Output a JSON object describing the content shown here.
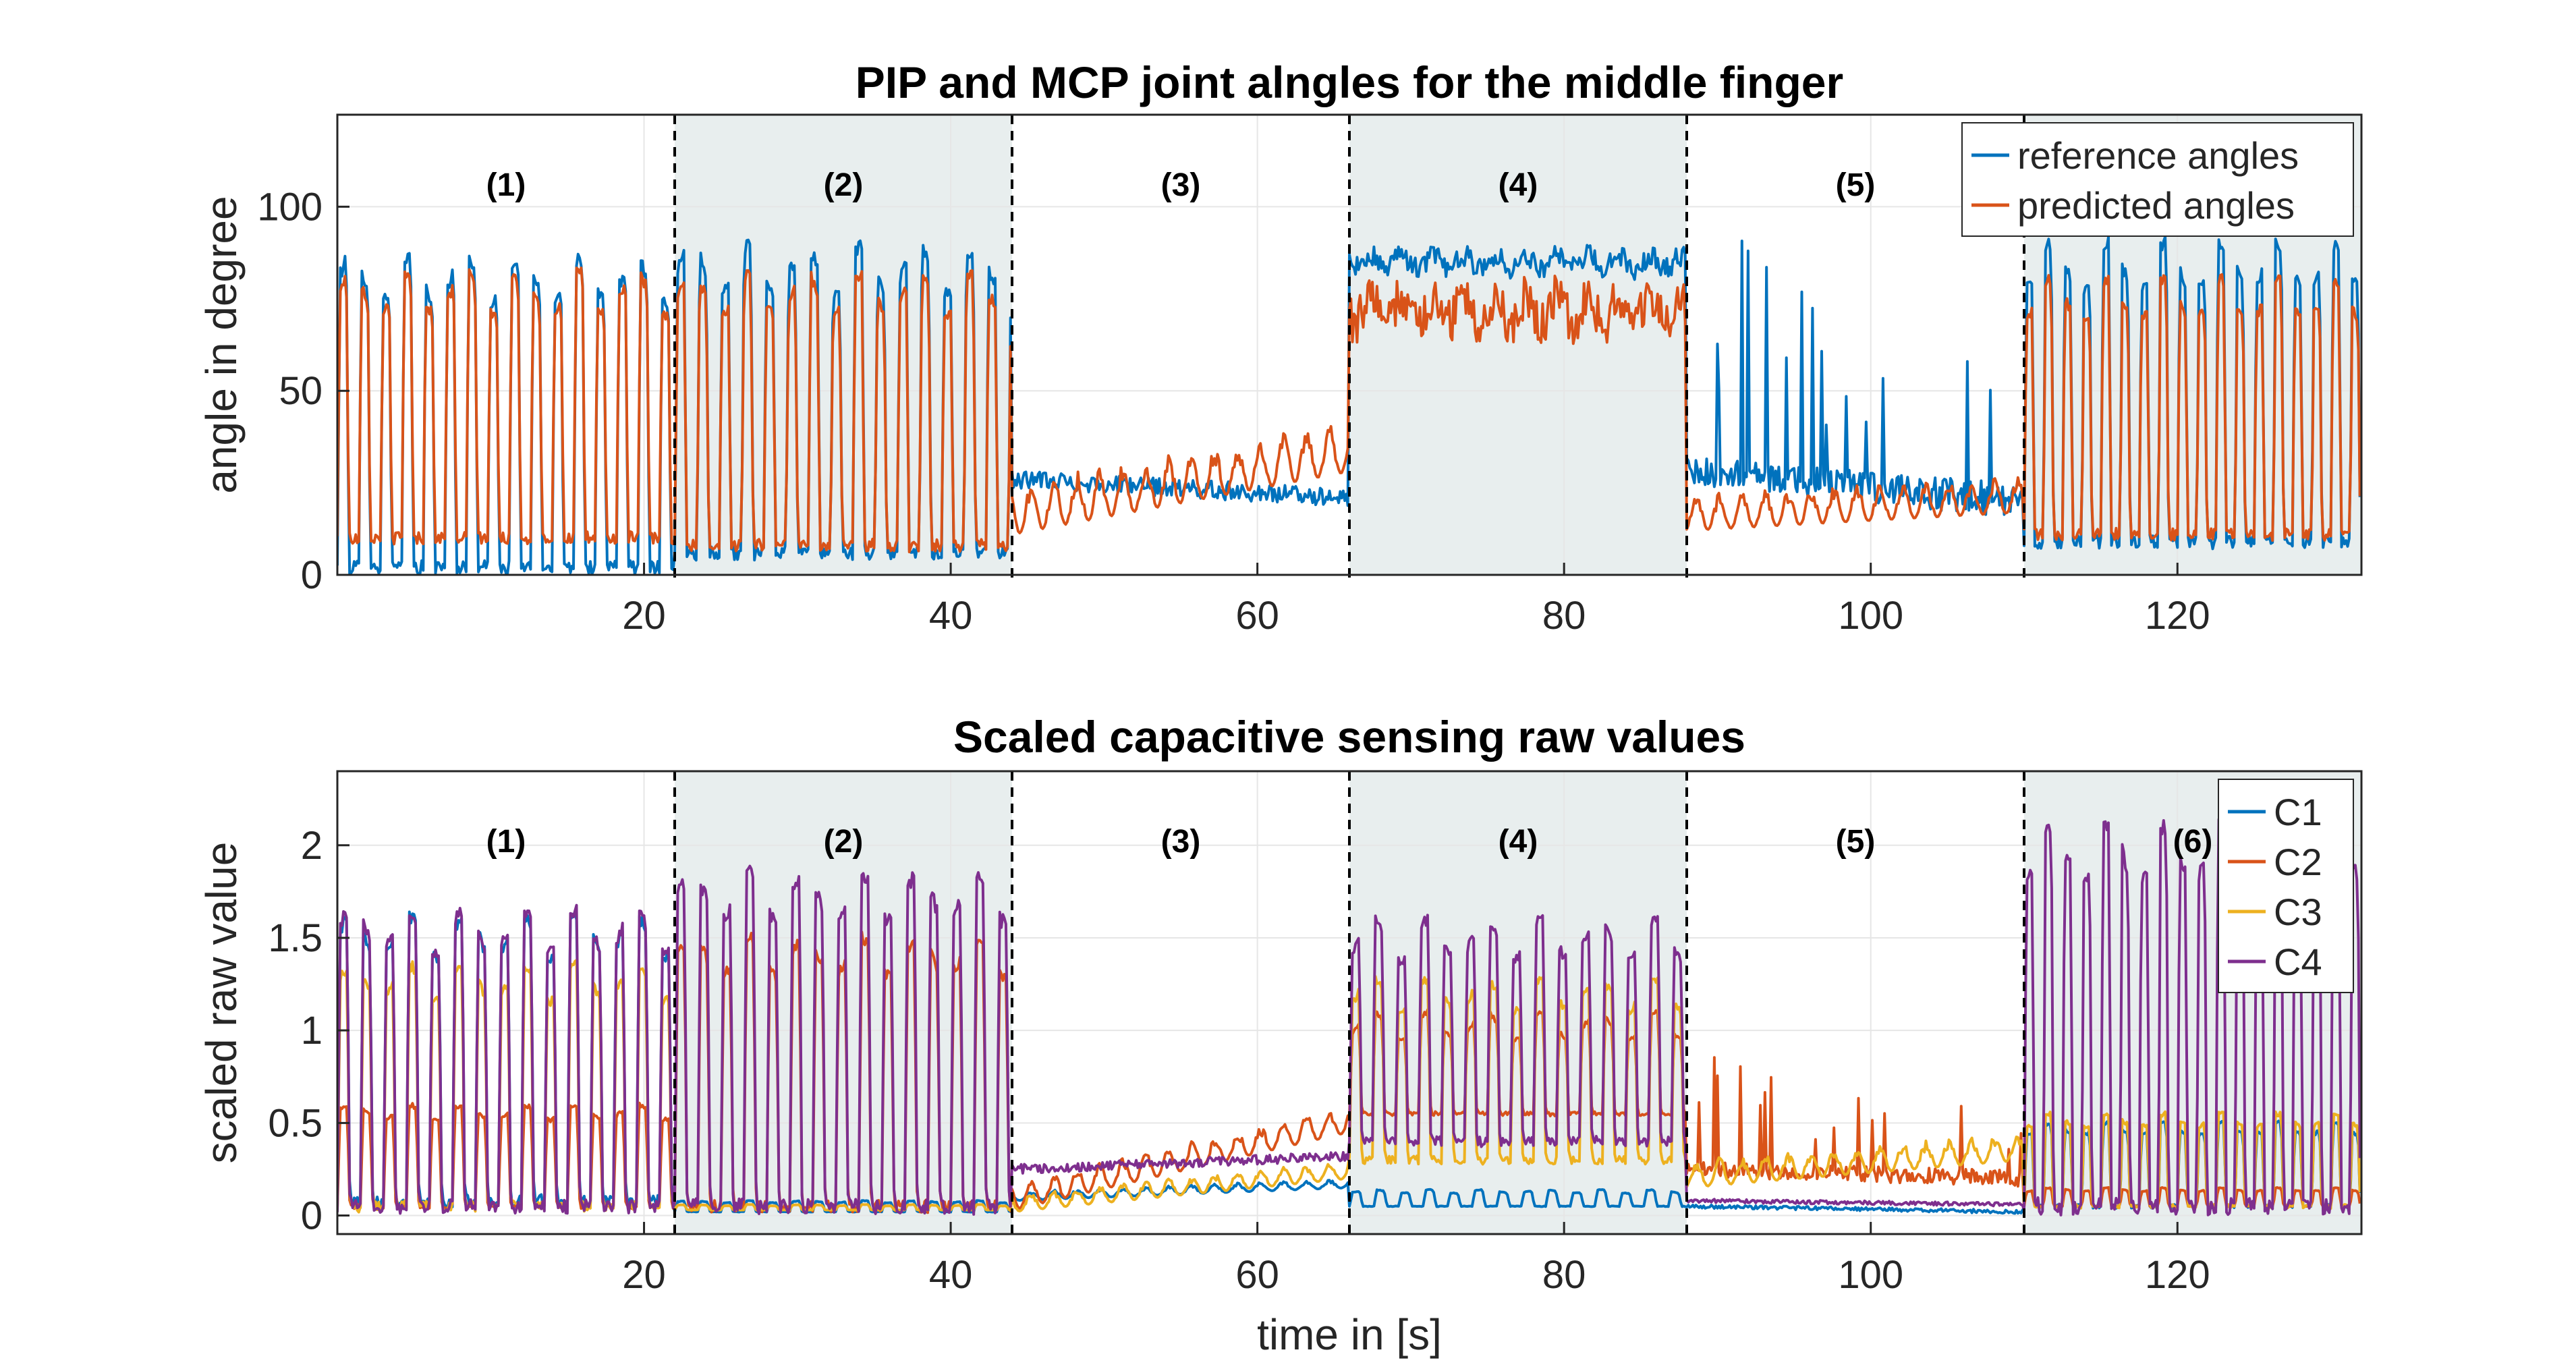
{
  "chart_data": [
    {
      "type": "line",
      "title": "PIP and MCP joint alngles for the middle finger",
      "xlabel": "",
      "ylabel": "angle in degree",
      "xlim": [
        0,
        132
      ],
      "ylim": [
        0,
        125
      ],
      "xticks": [
        20,
        40,
        60,
        80,
        100,
        120
      ],
      "yticks": [
        0,
        50,
        100
      ],
      "grid": true,
      "legend": {
        "placement": "top-right"
      },
      "segments": [
        {
          "label": "(1)",
          "start": 0,
          "end": 22,
          "shaded": false
        },
        {
          "label": "(2)",
          "start": 22,
          "end": 44,
          "shaded": true
        },
        {
          "label": "(3)",
          "start": 44,
          "end": 66,
          "shaded": false
        },
        {
          "label": "(4)",
          "start": 66,
          "end": 88,
          "shaded": true
        },
        {
          "label": "(5)",
          "start": 88,
          "end": 110,
          "shaded": false
        },
        {
          "label": "",
          "start": 110,
          "end": 132,
          "shaded": true
        }
      ],
      "dividers": [
        22,
        44,
        66,
        88,
        110
      ],
      "series": [
        {
          "name": "reference angles",
          "color": "#0072BD",
          "profile": [
            {
              "start": 0,
              "end": 22,
              "pattern": "pulse",
              "period": 1.4,
              "low": 2,
              "high": 86
            },
            {
              "start": 22,
              "end": 44,
              "pattern": "pulse",
              "period": 1.45,
              "low": 6,
              "high": 89
            },
            {
              "start": 44,
              "end": 66,
              "pattern": "drift",
              "from": 26,
              "to": 21,
              "jitter": 5
            },
            {
              "start": 66,
              "end": 88,
              "pattern": "plateau",
              "level": 85,
              "jitter": 6
            },
            {
              "start": 88,
              "end": 110,
              "pattern": "spiky",
              "from": 28,
              "to": 20,
              "spike_max": 98
            },
            {
              "start": 110,
              "end": 132,
              "pattern": "pulse",
              "period": 1.25,
              "low": 9,
              "high": 90
            }
          ]
        },
        {
          "name": "predicted angles",
          "color": "#D95319",
          "profile": [
            {
              "start": 0,
              "end": 22,
              "pattern": "pulse",
              "period": 1.4,
              "low": 10,
              "high": 82
            },
            {
              "start": 22,
              "end": 44,
              "pattern": "pulse",
              "period": 1.45,
              "low": 8,
              "high": 82
            },
            {
              "start": 44,
              "end": 66,
              "pattern": "ripple",
              "from": 11,
              "to": 28,
              "amp": 14
            },
            {
              "start": 66,
              "end": 88,
              "pattern": "plateau",
              "level": 72,
              "jitter": 12
            },
            {
              "start": 88,
              "end": 110,
              "pattern": "ripple",
              "from": 12,
              "to": 17,
              "amp": 10
            },
            {
              "start": 110,
              "end": 132,
              "pattern": "pulse",
              "period": 1.25,
              "low": 11,
              "high": 80
            }
          ]
        }
      ]
    },
    {
      "type": "line",
      "title": "Scaled capacitive sensing raw values",
      "xlabel": "time in [s]",
      "ylabel": "scaled raw value",
      "xlim": [
        0,
        132
      ],
      "ylim": [
        -0.1,
        2.4
      ],
      "xticks": [
        20,
        40,
        60,
        80,
        100,
        120
      ],
      "yticks": [
        0,
        0.5,
        1,
        1.5,
        2
      ],
      "ytick_labels": [
        "0",
        "0.5",
        "1",
        "1.5",
        "2"
      ],
      "grid": true,
      "legend": {
        "placement": "top-right"
      },
      "segments": [
        {
          "label": "(1)",
          "start": 0,
          "end": 22,
          "shaded": false
        },
        {
          "label": "(2)",
          "start": 22,
          "end": 44,
          "shaded": true
        },
        {
          "label": "(3)",
          "start": 44,
          "end": 66,
          "shaded": false
        },
        {
          "label": "(4)",
          "start": 66,
          "end": 88,
          "shaded": true
        },
        {
          "label": "(5)",
          "start": 88,
          "end": 110,
          "shaded": false
        },
        {
          "label": "(6)",
          "start": 110,
          "end": 132,
          "shaded": true
        }
      ],
      "dividers": [
        22,
        44,
        66,
        88,
        110
      ],
      "series": [
        {
          "name": "C1",
          "color": "#0072BD",
          "profile": [
            {
              "start": 0,
              "end": 22,
              "pattern": "pulse",
              "period": 1.5,
              "low": 0.08,
              "high": 1.62
            },
            {
              "start": 22,
              "end": 44,
              "pattern": "pulse",
              "period": 1.5,
              "low": 0.02,
              "high": 0.08
            },
            {
              "start": 44,
              "end": 66,
              "pattern": "ripple",
              "from": 0.08,
              "to": 0.15,
              "amp": 0.05
            },
            {
              "start": 66,
              "end": 88,
              "pattern": "pulse",
              "period": 1.6,
              "low": 0.05,
              "high": 0.14
            },
            {
              "start": 88,
              "end": 110,
              "pattern": "drift",
              "from": 0.05,
              "to": 0.02,
              "jitter": 0.02
            },
            {
              "start": 110,
              "end": 132,
              "pattern": "pulse",
              "period": 1.25,
              "low": 0.05,
              "high": 0.5
            }
          ]
        },
        {
          "name": "C2",
          "color": "#D95319",
          "profile": [
            {
              "start": 0,
              "end": 22,
              "pattern": "pulse",
              "period": 1.5,
              "low": 0.05,
              "high": 0.6
            },
            {
              "start": 22,
              "end": 44,
              "pattern": "pulse",
              "period": 1.5,
              "low": 0.05,
              "high": 1.5
            },
            {
              "start": 44,
              "end": 66,
              "pattern": "ripple",
              "from": 0.03,
              "to": 0.45,
              "amp": 0.15
            },
            {
              "start": 66,
              "end": 88,
              "pattern": "pulse",
              "period": 1.5,
              "low": 0.55,
              "high": 1.1
            },
            {
              "start": 88,
              "end": 110,
              "pattern": "spiky",
              "from": 0.25,
              "to": 0.2,
              "spike_max": 0.93
            },
            {
              "start": 110,
              "end": 132,
              "pattern": "pulse",
              "period": 1.25,
              "low": 0.05,
              "high": 0.15
            }
          ]
        },
        {
          "name": "C3",
          "color": "#EDB120",
          "profile": [
            {
              "start": 0,
              "end": 22,
              "pattern": "pulse",
              "period": 1.5,
              "low": 0.05,
              "high": 1.35
            },
            {
              "start": 22,
              "end": 44,
              "pattern": "pulse",
              "period": 1.5,
              "low": 0.03,
              "high": 0.06
            },
            {
              "start": 44,
              "end": 66,
              "pattern": "ripple",
              "from": 0.02,
              "to": 0.2,
              "amp": 0.1
            },
            {
              "start": 66,
              "end": 88,
              "pattern": "pulse",
              "period": 1.5,
              "low": 0.3,
              "high": 1.28
            },
            {
              "start": 88,
              "end": 110,
              "pattern": "ripple",
              "from": 0.15,
              "to": 0.3,
              "amp": 0.15
            },
            {
              "start": 110,
              "end": 132,
              "pattern": "pulse",
              "period": 1.25,
              "low": 0.05,
              "high": 0.55
            }
          ]
        },
        {
          "name": "C4",
          "color": "#7E2F8E",
          "profile": [
            {
              "start": 0,
              "end": 22,
              "pattern": "pulse",
              "period": 1.5,
              "low": 0.05,
              "high": 1.65
            },
            {
              "start": 22,
              "end": 44,
              "pattern": "pulse",
              "period": 1.5,
              "low": 0.05,
              "high": 1.85
            },
            {
              "start": 44,
              "end": 66,
              "pattern": "drift",
              "from": 0.25,
              "to": 0.32,
              "jitter": 0.05
            },
            {
              "start": 66,
              "end": 88,
              "pattern": "pulse",
              "period": 1.5,
              "low": 0.4,
              "high": 1.6
            },
            {
              "start": 88,
              "end": 110,
              "pattern": "drift",
              "from": 0.08,
              "to": 0.06,
              "jitter": 0.02
            },
            {
              "start": 110,
              "end": 132,
              "pattern": "pulse",
              "period": 1.25,
              "low": 0.05,
              "high": 2.1
            }
          ]
        }
      ]
    }
  ]
}
